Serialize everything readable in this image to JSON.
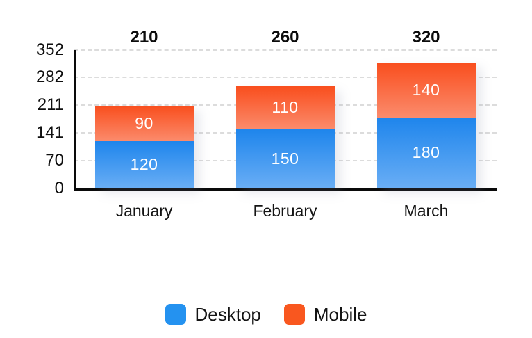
{
  "chart_data": {
    "type": "bar",
    "stacked": true,
    "title": "",
    "categories": [
      "January",
      "February",
      "March"
    ],
    "series": [
      {
        "name": "Desktop",
        "values": [
          120,
          150,
          180
        ],
        "legend_color": "#2492F0",
        "gradient_top": "#1E85EC",
        "gradient_bottom": "#6AAEF5"
      },
      {
        "name": "Mobile",
        "values": [
          90,
          110,
          140
        ],
        "legend_color": "#F9571F",
        "gradient_top": "#F94E1D",
        "gradient_bottom": "#FB8B6C"
      }
    ],
    "totals": [
      210,
      260,
      320
    ],
    "yticks": [
      0,
      70,
      141,
      211,
      282,
      352
    ],
    "ylim": [
      0,
      352
    ],
    "grid": "horizontal-dashed",
    "legend_position": "bottom",
    "colors": {
      "axis": "#0A0A0A",
      "gridline": "#DCDCDC",
      "bar_value_text": "#FFFFFF",
      "label_text": "#101010"
    }
  }
}
